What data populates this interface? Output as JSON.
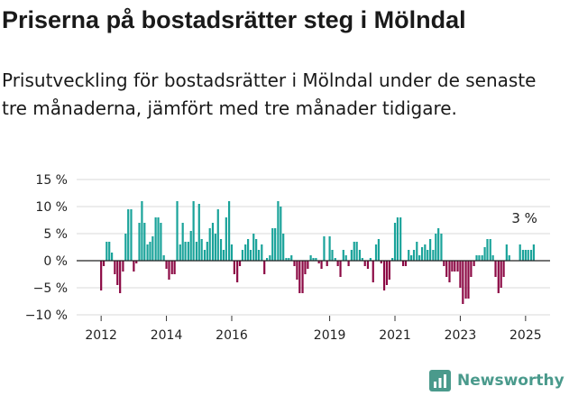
{
  "title": "Priserna på bostadsrätter steg i Mölndal",
  "subtitle": "Prisutveckling för bostadsrätter i Mölndal under de senaste tre månaderna, jämfört med tre månader tidigare.",
  "brand": {
    "name": "Newsworthy",
    "icon": "bar-chart-logo-icon"
  },
  "colors": {
    "positive": "#1aa39a",
    "negative": "#8c0a45",
    "grid": "#d9d9d9",
    "zero": "#222222",
    "brand": "#4a9a8c"
  },
  "chart_data": {
    "type": "bar",
    "ylim": [
      -10,
      15
    ],
    "yticks": [
      {
        "v": 15,
        "label": "15 %"
      },
      {
        "v": 10,
        "label": "10 %"
      },
      {
        "v": 5,
        "label": "5 %"
      },
      {
        "v": 0,
        "label": "0 %"
      },
      {
        "v": -5,
        "label": "−5 %"
      },
      {
        "v": -10,
        "label": "−10 %"
      }
    ],
    "xlim": [
      2011.25,
      2025.75
    ],
    "xticks": [
      {
        "v": 2012.0,
        "label": "2012"
      },
      {
        "v": 2014.0,
        "label": "2014"
      },
      {
        "v": 2016.0,
        "label": "2016"
      },
      {
        "v": 2019.0,
        "label": "2019"
      },
      {
        "v": 2021.0,
        "label": "2021"
      },
      {
        "v": 2023.0,
        "label": "2023"
      },
      {
        "v": 2025.0,
        "label": "2025"
      }
    ],
    "grid": true,
    "annotation": "3 %",
    "bars": [
      [
        2012.0,
        -5.5
      ],
      [
        2012.08,
        -1.0
      ],
      [
        2012.17,
        3.5
      ],
      [
        2012.25,
        3.5
      ],
      [
        2012.33,
        1.5
      ],
      [
        2012.42,
        -2.5
      ],
      [
        2012.5,
        -4.5
      ],
      [
        2012.58,
        -6.0
      ],
      [
        2012.67,
        -2.0
      ],
      [
        2012.75,
        5.0
      ],
      [
        2012.83,
        9.5
      ],
      [
        2012.92,
        9.5
      ],
      [
        2013.0,
        -2.0
      ],
      [
        2013.08,
        -0.5
      ],
      [
        2013.17,
        7.0
      ],
      [
        2013.25,
        11.0
      ],
      [
        2013.33,
        7.0
      ],
      [
        2013.42,
        3.0
      ],
      [
        2013.5,
        3.5
      ],
      [
        2013.58,
        4.5
      ],
      [
        2013.67,
        8.0
      ],
      [
        2013.75,
        8.0
      ],
      [
        2013.83,
        7.0
      ],
      [
        2013.92,
        1.0
      ],
      [
        2014.0,
        -1.5
      ],
      [
        2014.08,
        -3.5
      ],
      [
        2014.17,
        -2.5
      ],
      [
        2014.25,
        -2.5
      ],
      [
        2014.33,
        11.0
      ],
      [
        2014.42,
        3.0
      ],
      [
        2014.5,
        7.0
      ],
      [
        2014.58,
        3.5
      ],
      [
        2014.67,
        3.5
      ],
      [
        2014.75,
        5.5
      ],
      [
        2014.83,
        11.0
      ],
      [
        2014.92,
        3.5
      ],
      [
        2015.0,
        10.5
      ],
      [
        2015.08,
        4.0
      ],
      [
        2015.17,
        2.0
      ],
      [
        2015.25,
        3.5
      ],
      [
        2015.33,
        6.0
      ],
      [
        2015.42,
        7.0
      ],
      [
        2015.5,
        5.0
      ],
      [
        2015.58,
        9.5
      ],
      [
        2015.67,
        4.0
      ],
      [
        2015.75,
        2.0
      ],
      [
        2015.83,
        8.0
      ],
      [
        2015.92,
        11.0
      ],
      [
        2016.0,
        3.0
      ],
      [
        2016.08,
        -2.5
      ],
      [
        2016.17,
        -4.0
      ],
      [
        2016.25,
        -1.0
      ],
      [
        2016.33,
        2.0
      ],
      [
        2016.42,
        3.0
      ],
      [
        2016.5,
        4.0
      ],
      [
        2016.58,
        2.0
      ],
      [
        2016.67,
        5.0
      ],
      [
        2016.75,
        4.0
      ],
      [
        2016.83,
        2.0
      ],
      [
        2016.92,
        3.0
      ],
      [
        2017.0,
        -2.5
      ],
      [
        2017.08,
        0.5
      ],
      [
        2017.17,
        1.0
      ],
      [
        2017.25,
        6.0
      ],
      [
        2017.33,
        6.0
      ],
      [
        2017.42,
        11.0
      ],
      [
        2017.5,
        10.0
      ],
      [
        2017.58,
        5.0
      ],
      [
        2017.67,
        0.5
      ],
      [
        2017.75,
        0.5
      ],
      [
        2017.83,
        1.0
      ],
      [
        2017.92,
        -1.0
      ],
      [
        2018.0,
        -3.5
      ],
      [
        2018.08,
        -6.0
      ],
      [
        2018.17,
        -6.0
      ],
      [
        2018.25,
        -2.5
      ],
      [
        2018.33,
        -1.5
      ],
      [
        2018.42,
        1.0
      ],
      [
        2018.5,
        0.5
      ],
      [
        2018.58,
        0.5
      ],
      [
        2018.67,
        -0.5
      ],
      [
        2018.75,
        -1.5
      ],
      [
        2018.83,
        4.5
      ],
      [
        2018.92,
        -1.0
      ],
      [
        2019.0,
        4.5
      ],
      [
        2019.08,
        2.0
      ],
      [
        2019.17,
        0.5
      ],
      [
        2019.25,
        -1.0
      ],
      [
        2019.33,
        -3.0
      ],
      [
        2019.42,
        2.0
      ],
      [
        2019.5,
        1.0
      ],
      [
        2019.58,
        -1.0
      ],
      [
        2019.67,
        2.0
      ],
      [
        2019.75,
        3.5
      ],
      [
        2019.83,
        3.5
      ],
      [
        2019.92,
        2.0
      ],
      [
        2020.0,
        0.5
      ],
      [
        2020.08,
        -1.0
      ],
      [
        2020.17,
        -1.5
      ],
      [
        2020.25,
        0.5
      ],
      [
        2020.33,
        -4.0
      ],
      [
        2020.42,
        3.0
      ],
      [
        2020.5,
        4.0
      ],
      [
        2020.58,
        -0.5
      ],
      [
        2020.67,
        -5.5
      ],
      [
        2020.75,
        -4.5
      ],
      [
        2020.83,
        -3.5
      ],
      [
        2020.92,
        0.5
      ],
      [
        2021.0,
        7.0
      ],
      [
        2021.08,
        8.0
      ],
      [
        2021.17,
        8.0
      ],
      [
        2021.25,
        -1.0
      ],
      [
        2021.33,
        -1.0
      ],
      [
        2021.42,
        2.0
      ],
      [
        2021.5,
        1.0
      ],
      [
        2021.58,
        2.0
      ],
      [
        2021.67,
        3.5
      ],
      [
        2021.75,
        1.0
      ],
      [
        2021.83,
        2.5
      ],
      [
        2021.92,
        3.0
      ],
      [
        2022.0,
        2.0
      ],
      [
        2022.08,
        4.0
      ],
      [
        2022.17,
        2.0
      ],
      [
        2022.25,
        5.0
      ],
      [
        2022.33,
        6.0
      ],
      [
        2022.42,
        5.0
      ],
      [
        2022.5,
        -1.0
      ],
      [
        2022.58,
        -3.0
      ],
      [
        2022.67,
        -4.0
      ],
      [
        2022.75,
        -2.0
      ],
      [
        2022.83,
        -2.0
      ],
      [
        2022.92,
        -2.0
      ],
      [
        2023.0,
        -5.0
      ],
      [
        2023.08,
        -8.0
      ],
      [
        2023.17,
        -7.0
      ],
      [
        2023.25,
        -7.0
      ],
      [
        2023.33,
        -3.0
      ],
      [
        2023.42,
        -1.0
      ],
      [
        2023.5,
        1.0
      ],
      [
        2023.58,
        1.0
      ],
      [
        2023.67,
        1.0
      ],
      [
        2023.75,
        2.5
      ],
      [
        2023.83,
        4.0
      ],
      [
        2023.92,
        4.0
      ],
      [
        2024.0,
        1.0
      ],
      [
        2024.08,
        -3.0
      ],
      [
        2024.17,
        -6.0
      ],
      [
        2024.25,
        -5.0
      ],
      [
        2024.33,
        -3.0
      ],
      [
        2024.42,
        3.0
      ],
      [
        2024.5,
        1.0
      ],
      [
        2024.83,
        3.0
      ],
      [
        2024.92,
        2.0
      ],
      [
        2025.0,
        2.0
      ],
      [
        2025.08,
        2.0
      ],
      [
        2025.17,
        2.0
      ],
      [
        2025.25,
        3.0
      ]
    ]
  }
}
